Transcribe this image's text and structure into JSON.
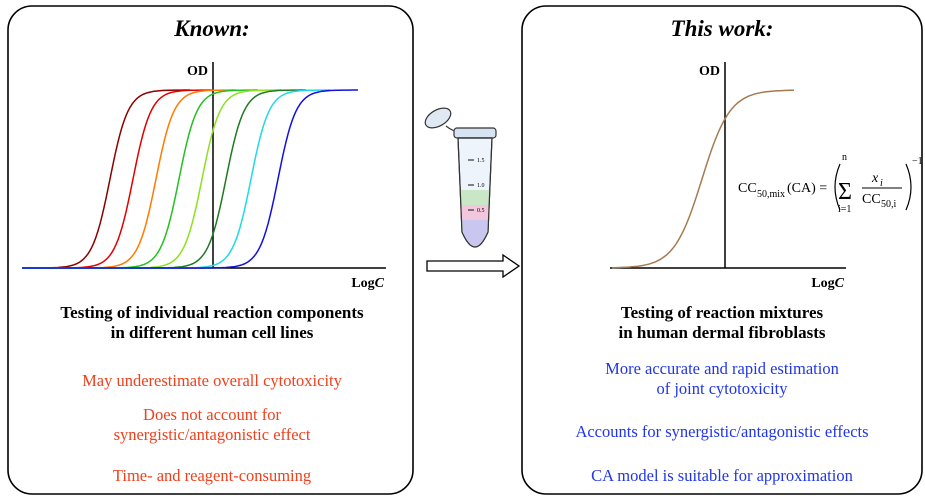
{
  "left": {
    "title": "Known:",
    "y_axis_label": "OD",
    "x_axis_label": {
      "base": "Log",
      "var": "C"
    },
    "caption": [
      "Testing of individual reaction components",
      "in different human cell lines"
    ],
    "notes": [
      "May underestimate overall cytotoxicity",
      "Does not account for",
      "synergistic/antagonistic effect",
      "Time- and reagent-consuming"
    ]
  },
  "right": {
    "title": "This work:",
    "y_axis_label": "OD",
    "x_axis_label": {
      "base": "Log",
      "var": "C"
    },
    "formula": {
      "lhs": "CC",
      "lhs_sub": "50,mix",
      "lhs_arg": "(CA) =",
      "sum": "Σ",
      "upper": "n",
      "lower": "i=1",
      "num": "x",
      "num_sub": "i",
      "den": "CC",
      "den_sub": "50,i",
      "exp": "−1"
    },
    "caption": [
      "Testing of reaction mixtures",
      "in human dermal fibroblasts"
    ],
    "notes": [
      "More accurate and rapid estimation",
      "of joint cytotoxicity",
      "Accounts for synergistic/antagonistic effects",
      "CA model is suitable for approximation"
    ]
  },
  "tube_marks": [
    "1.5",
    "1.0",
    "0.5"
  ]
}
